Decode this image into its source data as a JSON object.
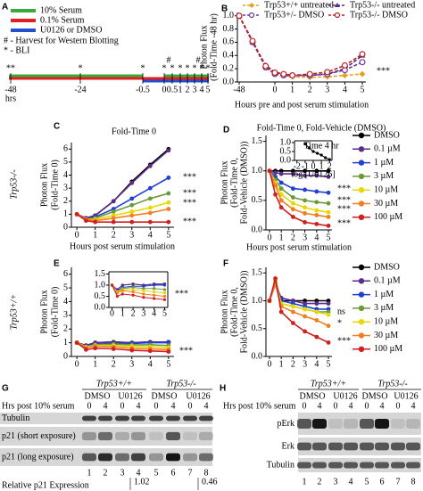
{
  "timeline": {
    "panel": "A",
    "legend": [
      "10% Serum",
      "0.1% Serum",
      "U0126 or DMSO"
    ],
    "colors": [
      "#3aaa3a",
      "#e02020",
      "#2050d0"
    ],
    "notes": [
      "# - Harvest for Western Blotting",
      "* - BLI"
    ],
    "markers": [
      "**",
      "*",
      "*",
      "#",
      "#",
      "*",
      "*",
      "*",
      "*",
      "*",
      "*",
      "*"
    ],
    "ticks": [
      "-48",
      "-24",
      "-0.5",
      "0",
      "0.5",
      "1",
      "2",
      "3",
      "4",
      "5"
    ],
    "unit": "hrs"
  },
  "chart_data": [
    {
      "type": "line",
      "panel": "B",
      "xlabel": "Hours pre and post serum stimulation",
      "ylabel": [
        "Photon Flux",
        "(Fold-Time -48 hr)"
      ],
      "x": [
        -48,
        -24,
        -0.5,
        0,
        0.5,
        1,
        2,
        3,
        4,
        5
      ],
      "xlim": [
        -48,
        5
      ],
      "xticks": [
        -48,
        0,
        1,
        2,
        3,
        4,
        5
      ],
      "ylim": [
        0,
        1.05
      ],
      "yticks": [
        {
          "value": 0,
          "label": "0.0"
        },
        0.2,
        0.4,
        0.6,
        0.8,
        {
          "value": 1,
          "label": "1.0"
        }
      ],
      "legend": "top",
      "annotations": [
        "***"
      ],
      "series": [
        {
          "name": "Trp53+/+ untreated",
          "color": "#e8a020",
          "marker": "diamond",
          "linestyle": "dashed",
          "values": [
            1.0,
            0.62,
            0.22,
            0.12,
            0.1,
            0.08,
            0.07,
            0.08,
            0.1,
            0.12
          ]
        },
        {
          "name": "Trp53-/- untreated",
          "color": "#4b2a8a",
          "marker": "triangle",
          "linestyle": "dashed",
          "values": [
            1.0,
            0.6,
            0.25,
            0.15,
            0.12,
            0.1,
            0.1,
            0.12,
            0.2,
            0.4
          ]
        },
        {
          "name": "Trp53+/- DMSO",
          "color": "#6a3aa0",
          "marker": "circle-open",
          "linestyle": "dashed",
          "values": [
            1.0,
            0.6,
            0.22,
            0.12,
            0.1,
            0.1,
            0.1,
            0.12,
            0.18,
            0.3
          ]
        },
        {
          "name": "Trp53-/- DMSO",
          "color": "#c02020",
          "marker": "circle-open",
          "linestyle": "dashed",
          "values": [
            1.0,
            0.62,
            0.24,
            0.14,
            0.12,
            0.1,
            0.12,
            0.15,
            0.25,
            0.42
          ]
        }
      ]
    },
    {
      "type": "line",
      "panel": "C",
      "title": "Fold-Time 0",
      "row_label": "Trp53-/-",
      "xlabel": "Hours post serum stimulation",
      "ylabel": [
        "Photon Flux",
        "(Fold-Time 0)"
      ],
      "x": [
        0,
        0.5,
        1,
        2,
        3,
        4,
        5
      ],
      "xlim": [
        -0.3,
        5.3
      ],
      "xticks": [
        0,
        1,
        2,
        3,
        4,
        5
      ],
      "ylim": [
        0,
        6.5
      ],
      "yticks": [
        0,
        1,
        2,
        3,
        4,
        5,
        6
      ],
      "annotations": [
        "***",
        "***",
        "***",
        "***"
      ],
      "series": [
        {
          "color": "#000000",
          "marker": "circle",
          "values": [
            1,
            0.7,
            0.9,
            2,
            3.5,
            4.8,
            6
          ]
        },
        {
          "color": "#5a2d8a",
          "marker": "circle",
          "values": [
            1,
            0.7,
            0.9,
            2,
            3.4,
            4.7,
            5.9
          ]
        },
        {
          "color": "#2040d0",
          "marker": "circle",
          "values": [
            1,
            0.6,
            0.8,
            1.4,
            2.2,
            3,
            3.8
          ]
        },
        {
          "color": "#6a9a3a",
          "marker": "circle",
          "values": [
            1,
            0.6,
            0.7,
            1.2,
            1.7,
            2.2,
            2.6
          ]
        },
        {
          "color": "#e8d800",
          "marker": "circle",
          "values": [
            1,
            0.6,
            0.6,
            0.9,
            1.2,
            1.5,
            1.9
          ]
        },
        {
          "color": "#f08020",
          "marker": "circle",
          "values": [
            1,
            0.6,
            0.5,
            0.7,
            0.9,
            1.1,
            1.4
          ]
        },
        {
          "color": "#d02020",
          "marker": "circle",
          "values": [
            1,
            0.5,
            0.4,
            0.4,
            0.4,
            0.4,
            0.4
          ]
        }
      ]
    },
    {
      "type": "line",
      "panel": "D",
      "title": "Fold-Time 0, Fold-Vehicle (DMSO)",
      "xlabel": "Hours post serum stimulation",
      "ylabel": [
        "Photon Flux",
        "(Fold-Time 0,",
        "Fold-Vehicle (DMSO))"
      ],
      "x": [
        0,
        0.5,
        1,
        2,
        3,
        4,
        5
      ],
      "xlim": [
        -0.3,
        5.3
      ],
      "xticks": [
        0,
        1,
        2,
        3,
        4,
        5
      ],
      "ylim": [
        0,
        1.6
      ],
      "yticks": [
        {
          "value": 0,
          "label": "0.0"
        },
        0.5,
        {
          "value": 1,
          "label": "1.0"
        },
        1.5
      ],
      "legend": "right",
      "annotations": [
        "***",
        "***",
        "***",
        "***"
      ],
      "series": [
        {
          "name": "DMSO",
          "color": "#000000",
          "marker": "circle",
          "values": [
            1,
            1,
            1,
            1,
            1,
            1,
            1
          ]
        },
        {
          "name": "0.1 µM",
          "color": "#5a2d8a",
          "marker": "circle",
          "values": [
            1,
            0.97,
            0.95,
            0.95,
            0.92,
            0.92,
            0.9
          ]
        },
        {
          "name": "1 µM",
          "color": "#2040d0",
          "marker": "circle",
          "values": [
            1,
            0.9,
            0.8,
            0.7,
            0.68,
            0.65,
            0.63
          ]
        },
        {
          "name": "3 µM",
          "color": "#6a9a3a",
          "marker": "circle",
          "values": [
            1,
            0.85,
            0.7,
            0.55,
            0.5,
            0.47,
            0.45
          ]
        },
        {
          "name": "10 µM",
          "color": "#e8d800",
          "marker": "circle",
          "values": [
            1,
            0.8,
            0.6,
            0.45,
            0.38,
            0.33,
            0.3
          ]
        },
        {
          "name": "30 µM",
          "color": "#f08020",
          "marker": "circle",
          "values": [
            1,
            0.75,
            0.5,
            0.35,
            0.28,
            0.25,
            0.22
          ]
        },
        {
          "name": "100 µM",
          "color": "#d02020",
          "marker": "circle",
          "values": [
            1,
            0.6,
            0.38,
            0.22,
            0.13,
            0.1,
            0.07
          ]
        }
      ]
    },
    {
      "type": "line",
      "title": "Time 4 hr",
      "xlabel": "log [U0126]",
      "x": [
        -1,
        -0.5,
        0,
        0.5,
        1,
        1.5,
        2
      ],
      "xlim": [
        -2.3,
        2.3
      ],
      "xticks": [
        -2,
        -1,
        0,
        1,
        2
      ],
      "ylim": [
        0,
        1.1
      ],
      "yticks": [
        {
          "value": 0,
          "label": "0.0"
        },
        0.5,
        {
          "value": 1,
          "label": "1.0"
        }
      ],
      "series": [
        {
          "color": "#000000",
          "marker": "circle",
          "values": [
            0.92,
            0.7,
            0.5,
            0.4,
            0.3,
            0.15,
            0.05
          ]
        }
      ]
    },
    {
      "type": "line",
      "panel": "E",
      "row_label": "Trp53+/+",
      "ylabel": [
        "Photon Flux",
        "(Fold-Time 0)"
      ],
      "x": [
        0,
        0.5,
        1,
        2,
        3,
        4,
        5
      ],
      "xlim": [
        -0.3,
        5.3
      ],
      "xticks": [
        0,
        1,
        2,
        3,
        4,
        5
      ],
      "ylim": [
        0,
        6.5
      ],
      "yticks": [
        0,
        1,
        2,
        3,
        4,
        5,
        6
      ],
      "annotations": [
        "***"
      ],
      "series": [
        {
          "color": "#000000",
          "marker": "circle",
          "values": [
            1,
            0.8,
            1,
            1.05,
            1,
            1.05,
            1.05
          ]
        },
        {
          "color": "#5a2d8a",
          "marker": "circle",
          "values": [
            1,
            0.8,
            1,
            1.05,
            1,
            1.05,
            1.05
          ]
        },
        {
          "color": "#2040d0",
          "marker": "circle",
          "values": [
            1,
            0.75,
            0.9,
            0.95,
            0.95,
            1,
            1
          ]
        },
        {
          "color": "#6a9a3a",
          "marker": "circle",
          "values": [
            1,
            0.7,
            0.85,
            0.9,
            0.85,
            0.85,
            0.8
          ]
        },
        {
          "color": "#e8d800",
          "marker": "circle",
          "values": [
            1,
            0.7,
            0.8,
            0.8,
            0.75,
            0.7,
            0.65
          ]
        },
        {
          "color": "#f08020",
          "marker": "circle",
          "values": [
            1,
            0.65,
            0.75,
            0.7,
            0.6,
            0.55,
            0.5
          ]
        },
        {
          "color": "#d02020",
          "marker": "circle",
          "values": [
            1,
            0.5,
            0.6,
            0.55,
            0.45,
            0.4,
            0.35
          ]
        }
      ]
    },
    {
      "type": "line",
      "x": [
        0,
        0.5,
        1,
        2,
        3,
        4,
        5
      ],
      "xlim": [
        -0.3,
        5.3
      ],
      "xticks": [
        0,
        1,
        2,
        3,
        4,
        5
      ],
      "ylim": [
        0,
        1.6
      ],
      "yticks": [
        {
          "value": 0,
          "label": "0.0"
        },
        0.5,
        {
          "value": 1,
          "label": "1.0"
        },
        1.5
      ],
      "annotations": [
        "***"
      ],
      "series": [
        {
          "color": "#000000",
          "marker": "circle",
          "values": [
            1,
            0.8,
            1,
            1.05,
            1,
            1.05,
            1.05
          ]
        },
        {
          "color": "#5a2d8a",
          "marker": "circle",
          "values": [
            1,
            0.8,
            1,
            1.05,
            1,
            1.05,
            1.05
          ]
        },
        {
          "color": "#2040d0",
          "marker": "circle",
          "values": [
            1,
            0.75,
            0.9,
            0.95,
            0.95,
            1,
            1
          ]
        },
        {
          "color": "#6a9a3a",
          "marker": "circle",
          "values": [
            1,
            0.7,
            0.85,
            0.9,
            0.85,
            0.85,
            0.8
          ]
        },
        {
          "color": "#e8d800",
          "marker": "circle",
          "values": [
            1,
            0.7,
            0.8,
            0.8,
            0.75,
            0.7,
            0.65
          ]
        },
        {
          "color": "#f08020",
          "marker": "circle",
          "values": [
            1,
            0.65,
            0.75,
            0.7,
            0.6,
            0.55,
            0.5
          ]
        },
        {
          "color": "#d02020",
          "marker": "circle",
          "values": [
            1,
            0.5,
            0.6,
            0.55,
            0.45,
            0.4,
            0.35
          ]
        }
      ]
    },
    {
      "type": "line",
      "panel": "F",
      "ylabel": [
        "Photon Flux",
        "(Fold-Time 0,",
        "Fold-Vehicle (DMSO))"
      ],
      "x": [
        0,
        0.5,
        1,
        2,
        3,
        4,
        5
      ],
      "xlim": [
        -0.3,
        5.3
      ],
      "xticks": [
        0,
        1,
        2,
        3,
        4,
        5
      ],
      "ylim": [
        0,
        1.6
      ],
      "yticks": [
        {
          "value": 0,
          "label": "0.0"
        },
        0.5,
        {
          "value": 1,
          "label": "1.0"
        },
        1.5
      ],
      "legend": "right",
      "annotations": [
        "ns",
        "*",
        "***"
      ],
      "series": [
        {
          "name": "DMSO",
          "color": "#000000",
          "marker": "circle",
          "values": [
            1,
            1.35,
            1,
            1,
            1,
            1,
            1
          ]
        },
        {
          "name": "0.1 µM",
          "color": "#5a2d8a",
          "marker": "circle",
          "values": [
            1,
            1.3,
            1.05,
            1,
            0.95,
            0.95,
            0.95
          ]
        },
        {
          "name": "1 µM",
          "color": "#2040d0",
          "marker": "circle",
          "values": [
            1,
            1.35,
            1,
            0.95,
            0.9,
            0.85,
            0.85
          ]
        },
        {
          "name": "3 µM",
          "color": "#6a9a3a",
          "marker": "circle",
          "values": [
            1,
            1.3,
            0.95,
            0.9,
            0.85,
            0.8,
            0.8
          ]
        },
        {
          "name": "10 µM",
          "color": "#e8d800",
          "marker": "circle",
          "values": [
            1,
            1.35,
            0.95,
            0.9,
            0.85,
            0.8,
            0.75
          ]
        },
        {
          "name": "30 µM",
          "color": "#f08020",
          "marker": "circle",
          "values": [
            1,
            1.3,
            0.9,
            0.8,
            0.72,
            0.65,
            0.55
          ]
        },
        {
          "name": "100 µM",
          "color": "#d02020",
          "marker": "circle",
          "values": [
            1,
            1.4,
            0.8,
            0.6,
            0.45,
            0.35,
            0.25
          ]
        }
      ]
    }
  ],
  "blot_g": {
    "panel": "G",
    "groups": [
      "Trp53+/+",
      "Trp53-/-"
    ],
    "treatments": [
      "DMSO",
      "U0126",
      "DMSO",
      "U0126"
    ],
    "time_label": "Hrs post 10% serum",
    "times": [
      "0",
      "4",
      "0",
      "4",
      "0",
      "4",
      "0",
      "4"
    ],
    "rows": [
      "Tubulin",
      "p21 (short exposure)",
      "p21 (long exposure)"
    ],
    "lanes": [
      "1",
      "2",
      "3",
      "4",
      "5",
      "6",
      "7",
      "8"
    ],
    "quant_label": "Relative p21 Expression",
    "quant": [
      1.02,
      0.46
    ]
  },
  "blot_h": {
    "panel": "H",
    "groups": [
      "Trp53+/+",
      "Trp53-/-"
    ],
    "treatments": [
      "DMSO",
      "U0126",
      "DMSO",
      "U0126"
    ],
    "time_label": "Hrs post 10% serum",
    "times": [
      "0",
      "4",
      "0",
      "4",
      "0",
      "4",
      "0",
      "4"
    ],
    "rows": [
      "pErk",
      "Erk",
      "Tubulin"
    ],
    "lanes": [
      "1",
      "2",
      "3",
      "4",
      "5",
      "6",
      "7",
      "8"
    ]
  }
}
